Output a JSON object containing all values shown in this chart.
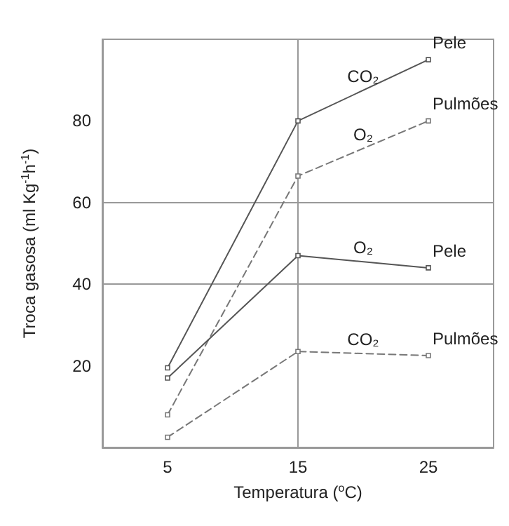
{
  "chart_data": {
    "type": "line",
    "xlabel": "Temperatura ($^{o}$C)",
    "ylabel": "Troca gasosa (ml Kg$^{-1}$h$^{-1}$)",
    "x": [
      5,
      15,
      25
    ],
    "xlim": [
      0,
      30
    ],
    "xticks": [
      5,
      15,
      25
    ],
    "ylim": [
      0,
      100
    ],
    "yticks": [
      20,
      40,
      60,
      80
    ],
    "grid": true,
    "marker": "square",
    "series": [
      {
        "color": "#555555",
        "line_style": "solid",
        "values": [
          19.5,
          80,
          95
        ]
      },
      {
        "color": "#777777",
        "line_style": "dashed",
        "values": [
          8,
          66.5,
          80
        ]
      },
      {
        "color": "#555555",
        "line_style": "solid",
        "values": [
          17,
          47,
          44
        ]
      },
      {
        "color": "#777777",
        "line_style": "dashed",
        "values": [
          2.5,
          23.5,
          22.5
        ]
      }
    ],
    "annotations": [
      "CO₂",
      "Pele",
      "O₂",
      "Pulmões",
      "O₂",
      "Pele",
      "CO₂",
      "Pulmões"
    ]
  }
}
